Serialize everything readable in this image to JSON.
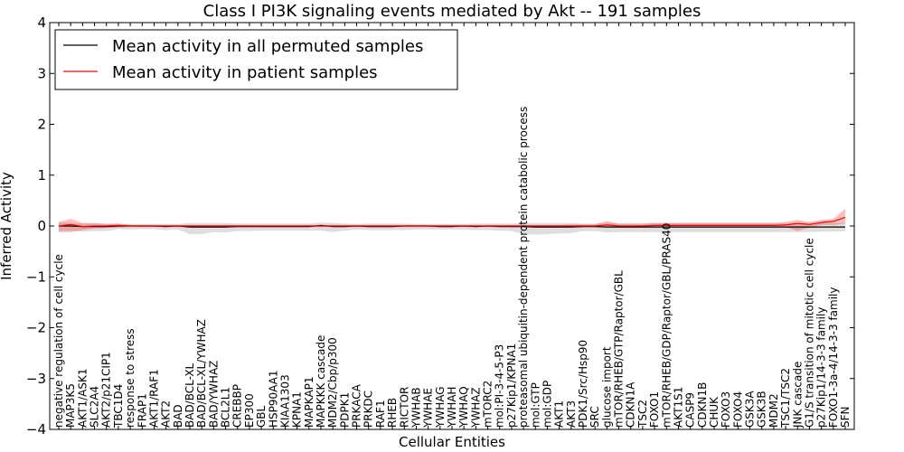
{
  "chart_data": {
    "type": "line",
    "title": "Class I PI3K signaling events mediated by Akt -- 191 samples",
    "xlabel": "Cellular Entities",
    "ylabel": "Inferred Activity",
    "ylim": [
      -4,
      4
    ],
    "yticks": [
      4,
      3,
      2,
      1,
      0,
      -1,
      -2,
      -3,
      -4
    ],
    "legend_position": "top-left",
    "grid": false,
    "categories": [
      "negative regulation of cell cycle",
      "MAP3K5",
      "AKT1/ASK1",
      "SLC2A4",
      "AKT2/p21CIP1",
      "TBC1D4",
      "response to stress",
      "FRAP1",
      "AKT1/RAF1",
      "AKT2",
      "BAD",
      "BAD/BCL-XL",
      "BAD/BCL-XL/YWHAZ",
      "BAD/YWHAZ",
      "BCL2L1",
      "CREBBP",
      "EP300",
      "GBL",
      "HSP90AA1",
      "KIAA1303",
      "KPNA1",
      "MAPKAP1",
      "MAPKKK cascade",
      "MDM2/Cbp/p300",
      "PDPK1",
      "PRKACA",
      "PRKDC",
      "RAF1",
      "RHEB",
      "RICTOR",
      "YWHAB",
      "YWHAE",
      "YWHAG",
      "YWHAH",
      "YWHAQ",
      "YWHAZ",
      "mTORC2",
      "mol:PI-3-4-5-P3",
      "p27Kip1/KPNA1",
      "proteasomal ubiquitin-dependent protein catabolic process",
      "mol:GTP",
      "mol:GDP",
      "AKT1",
      "AKT3",
      "PDK1/Src/Hsp90",
      "SRC",
      "glucose import",
      "mTOR/RHEB/GTP/Raptor/GBL",
      "CDKN1A",
      "TSC2",
      "FOXO1",
      "mTOR/RHEB/GDP/Raptor/GBL/PRAS40",
      "AKT1S1",
      "CASP9",
      "CDKN1B",
      "CHUK",
      "FOXO3",
      "FOXO4",
      "GSK3A",
      "GSK3B",
      "MDM2",
      "TSC1/TSC2",
      "JNK cascade",
      "G1/S transition of mitotic cell cycle",
      "p27Kip1/14-3-3 family",
      "FOXO1-3a-4/14-3-3 family",
      "SFN"
    ],
    "series": [
      {
        "name": "Mean activity in all permuted samples",
        "color": "#000000",
        "values": [
          0.0,
          0.0,
          -0.01,
          -0.01,
          -0.01,
          0.0,
          0.0,
          0.0,
          0.0,
          -0.01,
          0.0,
          -0.02,
          -0.02,
          -0.02,
          -0.02,
          -0.01,
          -0.01,
          -0.01,
          -0.01,
          -0.01,
          -0.01,
          -0.01,
          0.01,
          -0.01,
          -0.01,
          0.0,
          -0.01,
          -0.01,
          -0.01,
          0.0,
          0.0,
          0.0,
          -0.01,
          -0.01,
          0.0,
          -0.01,
          0.0,
          -0.01,
          -0.01,
          -0.01,
          -0.02,
          -0.02,
          -0.02,
          -0.02,
          -0.01,
          -0.01,
          -0.02,
          -0.02,
          -0.02,
          -0.02,
          -0.02,
          -0.02,
          -0.02,
          -0.02,
          -0.02,
          -0.02,
          -0.02,
          -0.02,
          -0.02,
          -0.02,
          -0.02,
          -0.02,
          -0.02,
          -0.02,
          -0.02,
          -0.02,
          -0.02
        ],
        "band_low": [
          -0.1,
          -0.09,
          -0.11,
          -0.1,
          -0.1,
          -0.06,
          -0.07,
          -0.06,
          -0.06,
          -0.08,
          -0.07,
          -0.16,
          -0.16,
          -0.12,
          -0.13,
          -0.1,
          -0.1,
          -0.09,
          -0.09,
          -0.09,
          -0.09,
          -0.09,
          -0.09,
          -0.12,
          -0.09,
          -0.07,
          -0.08,
          -0.08,
          -0.08,
          -0.08,
          -0.07,
          -0.07,
          -0.07,
          -0.07,
          -0.07,
          -0.08,
          -0.08,
          -0.09,
          -0.1,
          -0.16,
          -0.17,
          -0.16,
          -0.15,
          -0.14,
          -0.1,
          -0.1,
          -0.13,
          -0.12,
          -0.12,
          -0.12,
          -0.12,
          -0.12,
          -0.12,
          -0.12,
          -0.12,
          -0.12,
          -0.12,
          -0.12,
          -0.12,
          -0.12,
          -0.12,
          -0.12,
          -0.12,
          -0.12,
          -0.11,
          -0.11,
          -0.1
        ],
        "band_high": [
          0.07,
          0.06,
          0.05,
          0.05,
          0.05,
          0.04,
          0.04,
          0.04,
          0.04,
          0.04,
          0.04,
          0.06,
          0.06,
          0.06,
          0.06,
          0.05,
          0.05,
          0.05,
          0.05,
          0.05,
          0.05,
          0.05,
          0.07,
          0.06,
          0.05,
          0.04,
          0.05,
          0.05,
          0.05,
          0.05,
          0.04,
          0.04,
          0.04,
          0.04,
          0.04,
          0.05,
          0.05,
          0.05,
          0.05,
          0.06,
          0.06,
          0.06,
          0.06,
          0.06,
          0.05,
          0.05,
          0.06,
          0.06,
          0.06,
          0.06,
          0.06,
          0.06,
          0.06,
          0.06,
          0.06,
          0.06,
          0.06,
          0.06,
          0.06,
          0.06,
          0.06,
          0.06,
          0.06,
          0.06,
          0.06,
          0.06,
          0.06
        ]
      },
      {
        "name": "Mean activity in patient samples",
        "color": "#ff0000",
        "values": [
          0.0,
          0.03,
          -0.01,
          0.0,
          0.0,
          0.01,
          0.0,
          0.0,
          0.0,
          0.0,
          0.0,
          0.0,
          0.0,
          0.0,
          0.0,
          0.0,
          0.0,
          0.0,
          0.0,
          0.0,
          0.0,
          0.0,
          0.0,
          0.0,
          0.0,
          0.0,
          0.0,
          0.0,
          0.0,
          0.0,
          0.0,
          0.0,
          0.0,
          0.0,
          0.0,
          0.0,
          0.0,
          0.0,
          0.0,
          0.0,
          0.0,
          0.0,
          0.0,
          0.0,
          0.0,
          0.0,
          0.02,
          0.0,
          0.0,
          0.0,
          0.01,
          0.01,
          0.01,
          0.01,
          0.01,
          0.01,
          0.01,
          0.01,
          0.01,
          0.01,
          0.01,
          0.02,
          0.05,
          0.03,
          0.07,
          0.09,
          0.17
        ],
        "band_low": [
          -0.12,
          -0.12,
          -0.08,
          -0.05,
          -0.04,
          -0.03,
          -0.02,
          -0.02,
          -0.02,
          -0.02,
          -0.02,
          -0.02,
          -0.02,
          -0.02,
          -0.02,
          -0.02,
          -0.02,
          -0.02,
          -0.02,
          -0.02,
          -0.02,
          -0.02,
          -0.02,
          -0.02,
          -0.02,
          -0.02,
          -0.02,
          -0.02,
          -0.02,
          -0.02,
          -0.02,
          -0.02,
          -0.02,
          -0.02,
          -0.02,
          -0.02,
          -0.02,
          -0.02,
          -0.02,
          -0.03,
          -0.02,
          -0.02,
          -0.02,
          -0.02,
          -0.02,
          -0.02,
          -0.02,
          -0.02,
          -0.02,
          -0.02,
          -0.02,
          -0.02,
          -0.02,
          -0.02,
          -0.02,
          -0.02,
          -0.02,
          -0.02,
          -0.02,
          -0.02,
          -0.02,
          -0.02,
          -0.1,
          -0.03,
          0.02,
          0.02,
          0.05
        ],
        "band_high": [
          0.08,
          0.14,
          0.06,
          0.06,
          0.04,
          0.05,
          0.02,
          0.02,
          0.02,
          0.02,
          0.02,
          0.02,
          0.02,
          0.02,
          0.02,
          0.02,
          0.02,
          0.02,
          0.02,
          0.02,
          0.02,
          0.02,
          0.02,
          0.02,
          0.02,
          0.02,
          0.02,
          0.02,
          0.02,
          0.02,
          0.02,
          0.02,
          0.02,
          0.02,
          0.02,
          0.02,
          0.02,
          0.02,
          0.02,
          0.02,
          0.02,
          0.02,
          0.02,
          0.03,
          0.03,
          0.03,
          0.1,
          0.04,
          0.04,
          0.04,
          0.06,
          0.06,
          0.06,
          0.06,
          0.06,
          0.06,
          0.06,
          0.06,
          0.06,
          0.06,
          0.06,
          0.08,
          0.12,
          0.08,
          0.12,
          0.14,
          0.34
        ]
      }
    ]
  }
}
